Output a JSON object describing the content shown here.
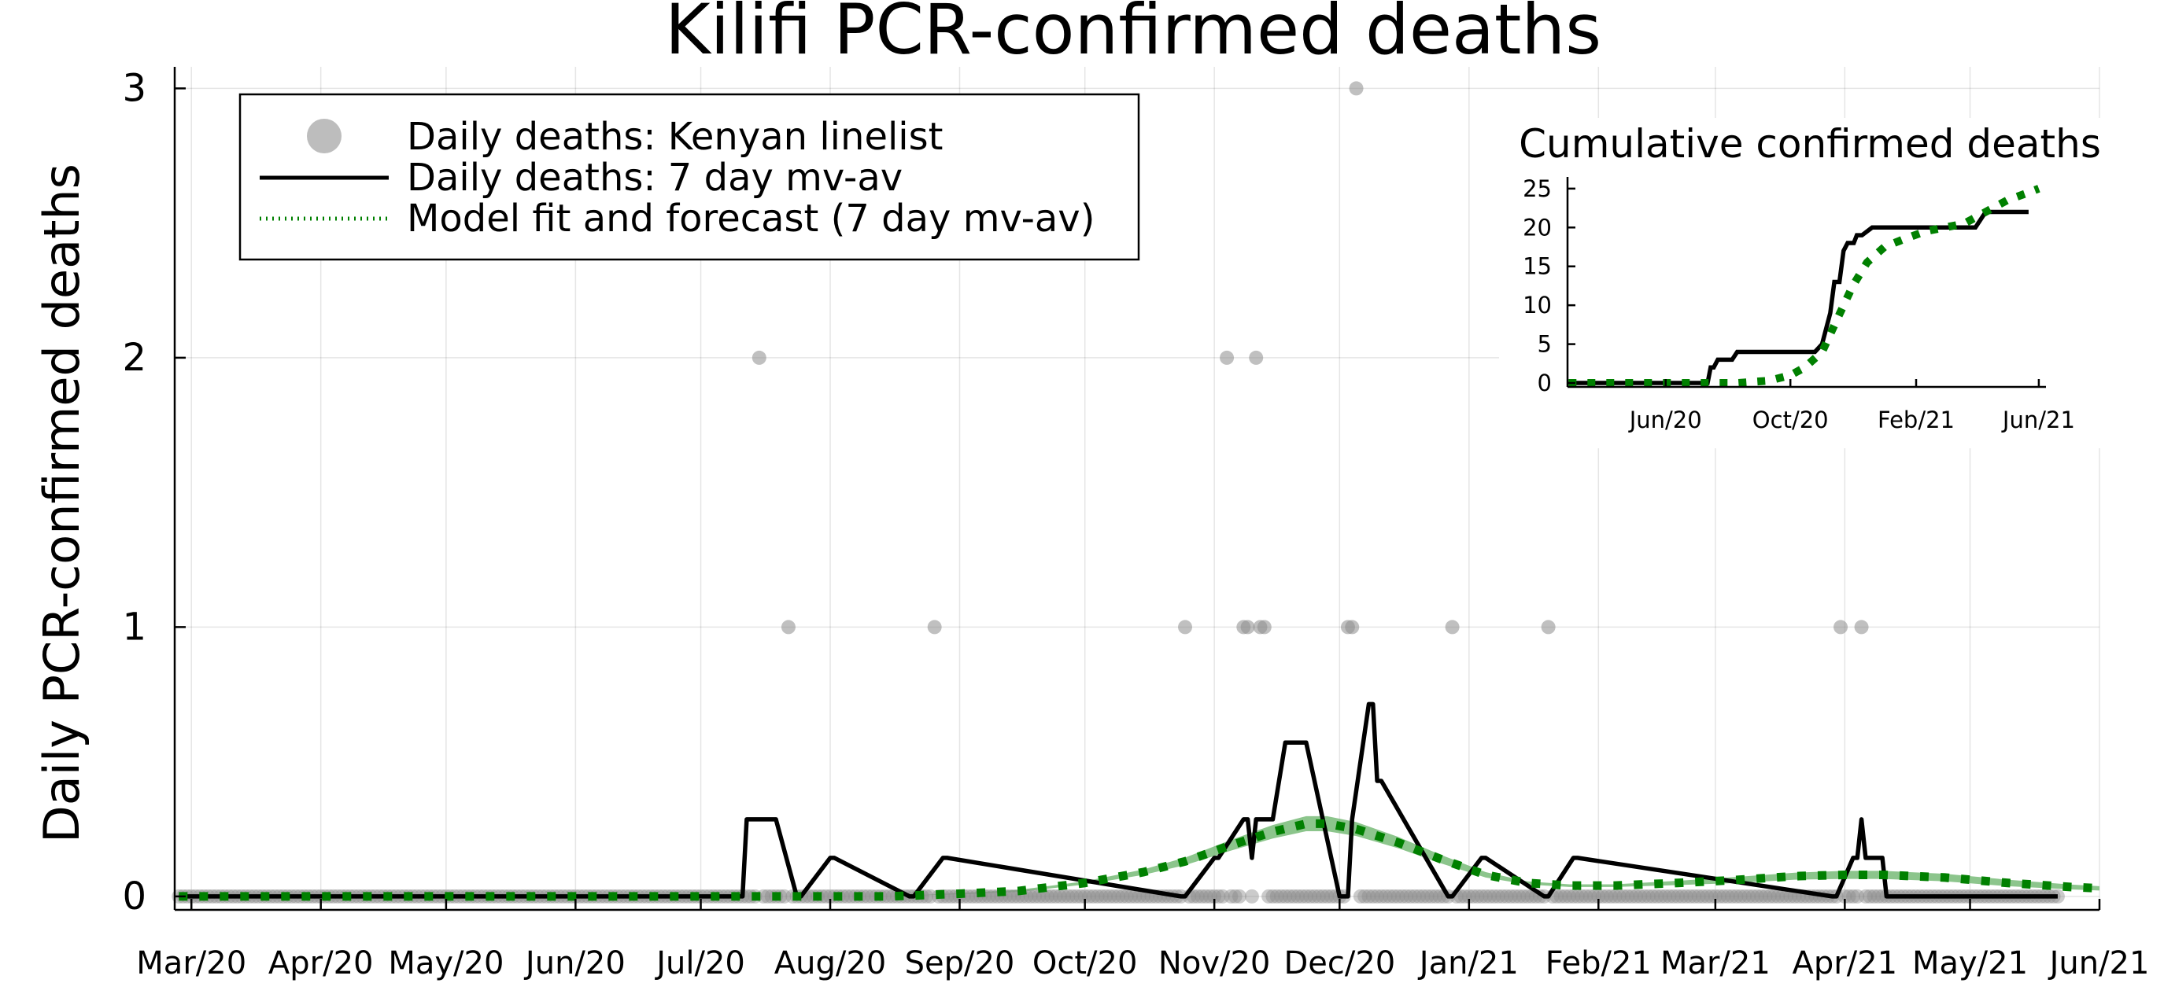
{
  "chart_data": [
    {
      "type": "scatter+line",
      "title": "Kilifi PCR-confirmed deaths",
      "xlabel": "",
      "ylabel": "Daily PCR-confirmed deaths",
      "x_type": "date",
      "xlim": [
        "2020-02-26",
        "2021-06-01"
      ],
      "ylim": [
        -0.05,
        3.08
      ],
      "yticks": [
        0,
        1,
        2,
        3
      ],
      "xticks": [
        {
          "date": "2020-03-01",
          "label": "Mar/20"
        },
        {
          "date": "2020-04-01",
          "label": "Apr/20"
        },
        {
          "date": "2020-05-01",
          "label": "May/20"
        },
        {
          "date": "2020-06-01",
          "label": "Jun/20"
        },
        {
          "date": "2020-07-01",
          "label": "Jul/20"
        },
        {
          "date": "2020-08-01",
          "label": "Aug/20"
        },
        {
          "date": "2020-09-01",
          "label": "Sep/20"
        },
        {
          "date": "2020-10-01",
          "label": "Oct/20"
        },
        {
          "date": "2020-11-01",
          "label": "Nov/20"
        },
        {
          "date": "2020-12-01",
          "label": "Dec/20"
        },
        {
          "date": "2021-01-01",
          "label": "Jan/21"
        },
        {
          "date": "2021-02-01",
          "label": "Feb/21"
        },
        {
          "date": "2021-03-01",
          "label": "Mar/21"
        },
        {
          "date": "2021-04-01",
          "label": "Apr/21"
        },
        {
          "date": "2021-05-01",
          "label": "May/21"
        },
        {
          "date": "2021-06-01",
          "label": "Jun/21"
        }
      ],
      "grid": true,
      "legend_position": "top-left",
      "legend": [
        "Daily deaths: Kenyan linelist",
        "Daily deaths: 7 day mv-av",
        "Model fit and forecast (7 day mv-av)"
      ],
      "colors": {
        "scatter": "#b0b0b0",
        "mvav": "#000000",
        "model": "#008000",
        "band": "#66b266"
      },
      "series": [
        {
          "name": "Daily deaths: Kenyan linelist",
          "kind": "scatter",
          "range_zero": [
            "2020-02-27",
            "2021-05-22"
          ],
          "points": [
            {
              "x": "2020-07-15",
              "y": 2
            },
            {
              "x": "2020-07-22",
              "y": 1
            },
            {
              "x": "2020-08-26",
              "y": 1
            },
            {
              "x": "2020-10-25",
              "y": 1
            },
            {
              "x": "2020-11-04",
              "y": 2
            },
            {
              "x": "2020-11-08",
              "y": 1
            },
            {
              "x": "2020-11-09",
              "y": 1
            },
            {
              "x": "2020-11-11",
              "y": 2
            },
            {
              "x": "2020-11-12",
              "y": 1
            },
            {
              "x": "2020-11-13",
              "y": 1
            },
            {
              "x": "2020-12-03",
              "y": 1
            },
            {
              "x": "2020-12-04",
              "y": 1
            },
            {
              "x": "2020-12-05",
              "y": 3
            },
            {
              "x": "2020-12-28",
              "y": 1
            },
            {
              "x": "2021-01-20",
              "y": 1
            },
            {
              "x": "2021-03-31",
              "y": 1
            },
            {
              "x": "2021-04-05",
              "y": 1
            }
          ]
        },
        {
          "name": "Daily deaths: 7 day mv-av",
          "kind": "line",
          "x": [
            "2020-02-27",
            "2020-07-11",
            "2020-07-12",
            "2020-07-18",
            "2020-07-19",
            "2020-07-24",
            "2020-07-25",
            "2020-08-01",
            "2020-08-02",
            "2020-08-20",
            "2020-08-21",
            "2020-08-28",
            "2020-08-29",
            "2020-10-24",
            "2020-10-25",
            "2020-11-01",
            "2020-11-02",
            "2020-11-08",
            "2020-11-09",
            "2020-11-10",
            "2020-11-11",
            "2020-11-14",
            "2020-11-15",
            "2020-11-18",
            "2020-11-19",
            "2020-11-22",
            "2020-11-23",
            "2020-12-01",
            "2020-12-02",
            "2020-12-03",
            "2020-12-04",
            "2020-12-08",
            "2020-12-09",
            "2020-12-10",
            "2020-12-11",
            "2020-12-27",
            "2020-12-28",
            "2021-01-04",
            "2021-01-05",
            "2021-01-19",
            "2021-01-20",
            "2021-01-26",
            "2021-01-27",
            "2021-03-29",
            "2021-03-30",
            "2021-04-03",
            "2021-04-04",
            "2021-04-05",
            "2021-04-06",
            "2021-04-10",
            "2021-04-11",
            "2021-05-22"
          ],
          "y": [
            0,
            0,
            0.286,
            0.286,
            0.286,
            0,
            0,
            0.143,
            0.143,
            0,
            0,
            0.143,
            0.143,
            0,
            0,
            0.143,
            0.143,
            0.286,
            0.286,
            0.143,
            0.286,
            0.286,
            0.286,
            0.571,
            0.571,
            0.571,
            0.571,
            0,
            0,
            0,
            0.286,
            0.714,
            0.714,
            0.429,
            0.429,
            0,
            0,
            0.143,
            0.143,
            0,
            0,
            0.143,
            0.143,
            0,
            0,
            0.143,
            0.143,
            0.286,
            0.143,
            0.143,
            0,
            0
          ]
        },
        {
          "name": "Model fit and forecast (7 day mv-av)",
          "kind": "line-dotted-with-band",
          "x": [
            "2020-02-27",
            "2020-08-15",
            "2020-09-01",
            "2020-09-15",
            "2020-10-01",
            "2020-10-15",
            "2020-10-25",
            "2020-11-05",
            "2020-11-15",
            "2020-11-23",
            "2020-11-28",
            "2020-12-05",
            "2020-12-15",
            "2020-12-25",
            "2021-01-05",
            "2021-01-15",
            "2021-01-25",
            "2021-02-05",
            "2021-02-20",
            "2021-03-05",
            "2021-03-20",
            "2021-04-01",
            "2021-04-10",
            "2021-04-25",
            "2021-05-10",
            "2021-05-25",
            "2021-06-01"
          ],
          "y": [
            0,
            0,
            0.01,
            0.02,
            0.05,
            0.09,
            0.13,
            0.19,
            0.24,
            0.27,
            0.27,
            0.25,
            0.2,
            0.14,
            0.08,
            0.05,
            0.04,
            0.04,
            0.05,
            0.06,
            0.075,
            0.08,
            0.08,
            0.07,
            0.05,
            0.035,
            0.03
          ],
          "band_half_width": [
            0,
            0,
            0.002,
            0.004,
            0.006,
            0.01,
            0.014,
            0.02,
            0.025,
            0.028,
            0.028,
            0.026,
            0.021,
            0.016,
            0.01,
            0.006,
            0.005,
            0.005,
            0.008,
            0.011,
            0.013,
            0.015,
            0.015,
            0.014,
            0.012,
            0.009,
            0.008
          ]
        }
      ]
    },
    {
      "type": "line",
      "title": "Cumulative confirmed deaths",
      "x_type": "date",
      "xlim": [
        "2020-02-26",
        "2021-06-08"
      ],
      "ylim": [
        -0.5,
        26.5
      ],
      "yticks": [
        0,
        5,
        10,
        15,
        20,
        25
      ],
      "xticks": [
        {
          "date": "2020-06-01",
          "label": "Jun/20"
        },
        {
          "date": "2020-10-01",
          "label": "Oct/20"
        },
        {
          "date": "2021-02-01",
          "label": "Feb/21"
        },
        {
          "date": "2021-06-01",
          "label": "Jun/21"
        }
      ],
      "grid": false,
      "series": [
        {
          "name": "Daily deaths: 7 day mv-av",
          "x": [
            "2020-02-27",
            "2020-07-12",
            "2020-07-15",
            "2020-07-18",
            "2020-07-22",
            "2020-08-05",
            "2020-08-10",
            "2020-08-26",
            "2020-10-25",
            "2020-11-01",
            "2020-11-05",
            "2020-11-09",
            "2020-11-13",
            "2020-11-18",
            "2020-11-22",
            "2020-11-26",
            "2020-12-02",
            "2020-12-05",
            "2020-12-10",
            "2020-12-20",
            "2020-12-28",
            "2021-01-05",
            "2021-01-20",
            "2021-03-31",
            "2021-04-05",
            "2021-04-10",
            "2021-05-22"
          ],
          "y": [
            0,
            0,
            2,
            2,
            3,
            3,
            4,
            4,
            4,
            5,
            7,
            9,
            13,
            13,
            17,
            18,
            18,
            19,
            19,
            20,
            20,
            20,
            20,
            20,
            21,
            22,
            22
          ]
        },
        {
          "name": "Model fit and forecast (7 day mv-av)",
          "x": [
            "2020-02-27",
            "2020-08-10",
            "2020-09-10",
            "2020-10-01",
            "2020-10-15",
            "2020-11-01",
            "2020-11-15",
            "2020-12-01",
            "2020-12-15",
            "2021-01-01",
            "2021-01-20",
            "2021-02-10",
            "2021-03-01",
            "2021-03-20",
            "2021-04-10",
            "2021-05-01",
            "2021-05-22",
            "2021-06-01"
          ],
          "y": [
            0,
            0,
            0.3,
            1,
            2,
            4,
            8,
            12.5,
            15.5,
            17.5,
            18.5,
            19.5,
            20,
            20.5,
            22,
            23.5,
            24.5,
            25
          ]
        }
      ]
    }
  ]
}
